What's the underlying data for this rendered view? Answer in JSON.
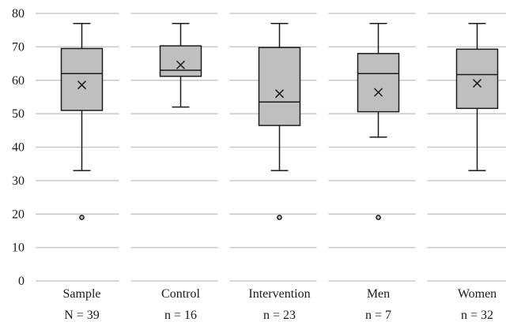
{
  "chart_data": {
    "type": "box",
    "title": "",
    "xlabel": "",
    "ylabel": "",
    "ylim": [
      0,
      80
    ],
    "yticks": [
      "0",
      "10",
      "20",
      "30",
      "40",
      "50",
      "60",
      "70",
      "80"
    ],
    "grid": true,
    "categories": [
      {
        "label": "Sample",
        "n_label": "N = 39",
        "min": 33,
        "q1": 51,
        "median": 62,
        "q3": 69.5,
        "max": 77,
        "mean": 58.6,
        "outliers": [
          19
        ]
      },
      {
        "label": "Control",
        "n_label": "n = 16",
        "min": 52,
        "q1": 61.2,
        "median": 63,
        "q3": 70.3,
        "max": 77,
        "mean": 64.6,
        "outliers": []
      },
      {
        "label": "Intervention",
        "n_label": "n = 23",
        "min": 33,
        "q1": 46.5,
        "median": 53.5,
        "q3": 69.8,
        "max": 77,
        "mean": 56,
        "outliers": [
          19
        ]
      },
      {
        "label": "Men",
        "n_label": "n = 7",
        "min": 43,
        "q1": 50.6,
        "median": 62,
        "q3": 68,
        "max": 77,
        "mean": 56.4,
        "outliers": [
          19
        ]
      },
      {
        "label": "Women",
        "n_label": "n = 32",
        "min": 33,
        "q1": 51.6,
        "median": 61.7,
        "q3": 69.3,
        "max": 77,
        "mean": 59.1,
        "outliers": []
      }
    ],
    "colors": {
      "box_fill": "#bfbfbf",
      "stroke": "#1a1a1a",
      "grid": "#c8c8c8"
    }
  }
}
